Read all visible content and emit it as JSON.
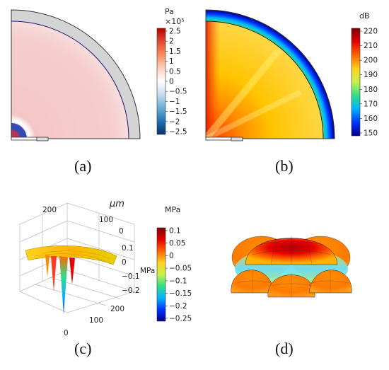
{
  "panels": {
    "a": {
      "caption": "(a)",
      "colorbar": {
        "unit": "Pa",
        "exponent": "×10⁵",
        "ticks": [
          "2.5",
          "2",
          "1.5",
          "1",
          "0.5",
          "0",
          "−0.5",
          "−1",
          "−1.5",
          "−2",
          "−2.5"
        ],
        "colors": [
          "#b30000",
          "#e34a33",
          "#fc8d59",
          "#fdd0c2",
          "#ffffff",
          "#c6dbef",
          "#6baed6",
          "#2171b5",
          "#08306b"
        ]
      }
    },
    "b": {
      "caption": "(b)",
      "colorbar": {
        "unit": "dB",
        "ticks": [
          "220",
          "210",
          "200",
          "190",
          "180",
          "170",
          "160",
          "150"
        ],
        "colors": [
          "#7f0000",
          "#e60000",
          "#ff6600",
          "#ffd21f",
          "#c8f04a",
          "#33dd88",
          "#00b5ff",
          "#0033ff",
          "#00008b"
        ]
      }
    },
    "c": {
      "caption": "(c)",
      "axis_unit": "μm",
      "axis_ticks_back": [
        "200",
        "100",
        "0"
      ],
      "axis_ticks_front": [
        "200",
        "100",
        "0"
      ],
      "z_ticks": [
        "0.1",
        "0",
        "−0.1",
        "−0.2"
      ],
      "z_label": "MPa",
      "colorbar": {
        "unit": "MPa",
        "ticks": [
          "0.1",
          "0.05",
          "0",
          "−0.05",
          "−0.1",
          "−0.15",
          "−0.2",
          "−0.25"
        ],
        "colors": [
          "#7f0000",
          "#e60000",
          "#ff6600",
          "#ffd21f",
          "#c8f04a",
          "#33dd88",
          "#00b5ff",
          "#0033ff",
          "#00008b"
        ]
      }
    },
    "d": {
      "caption": "(d)"
    }
  }
}
